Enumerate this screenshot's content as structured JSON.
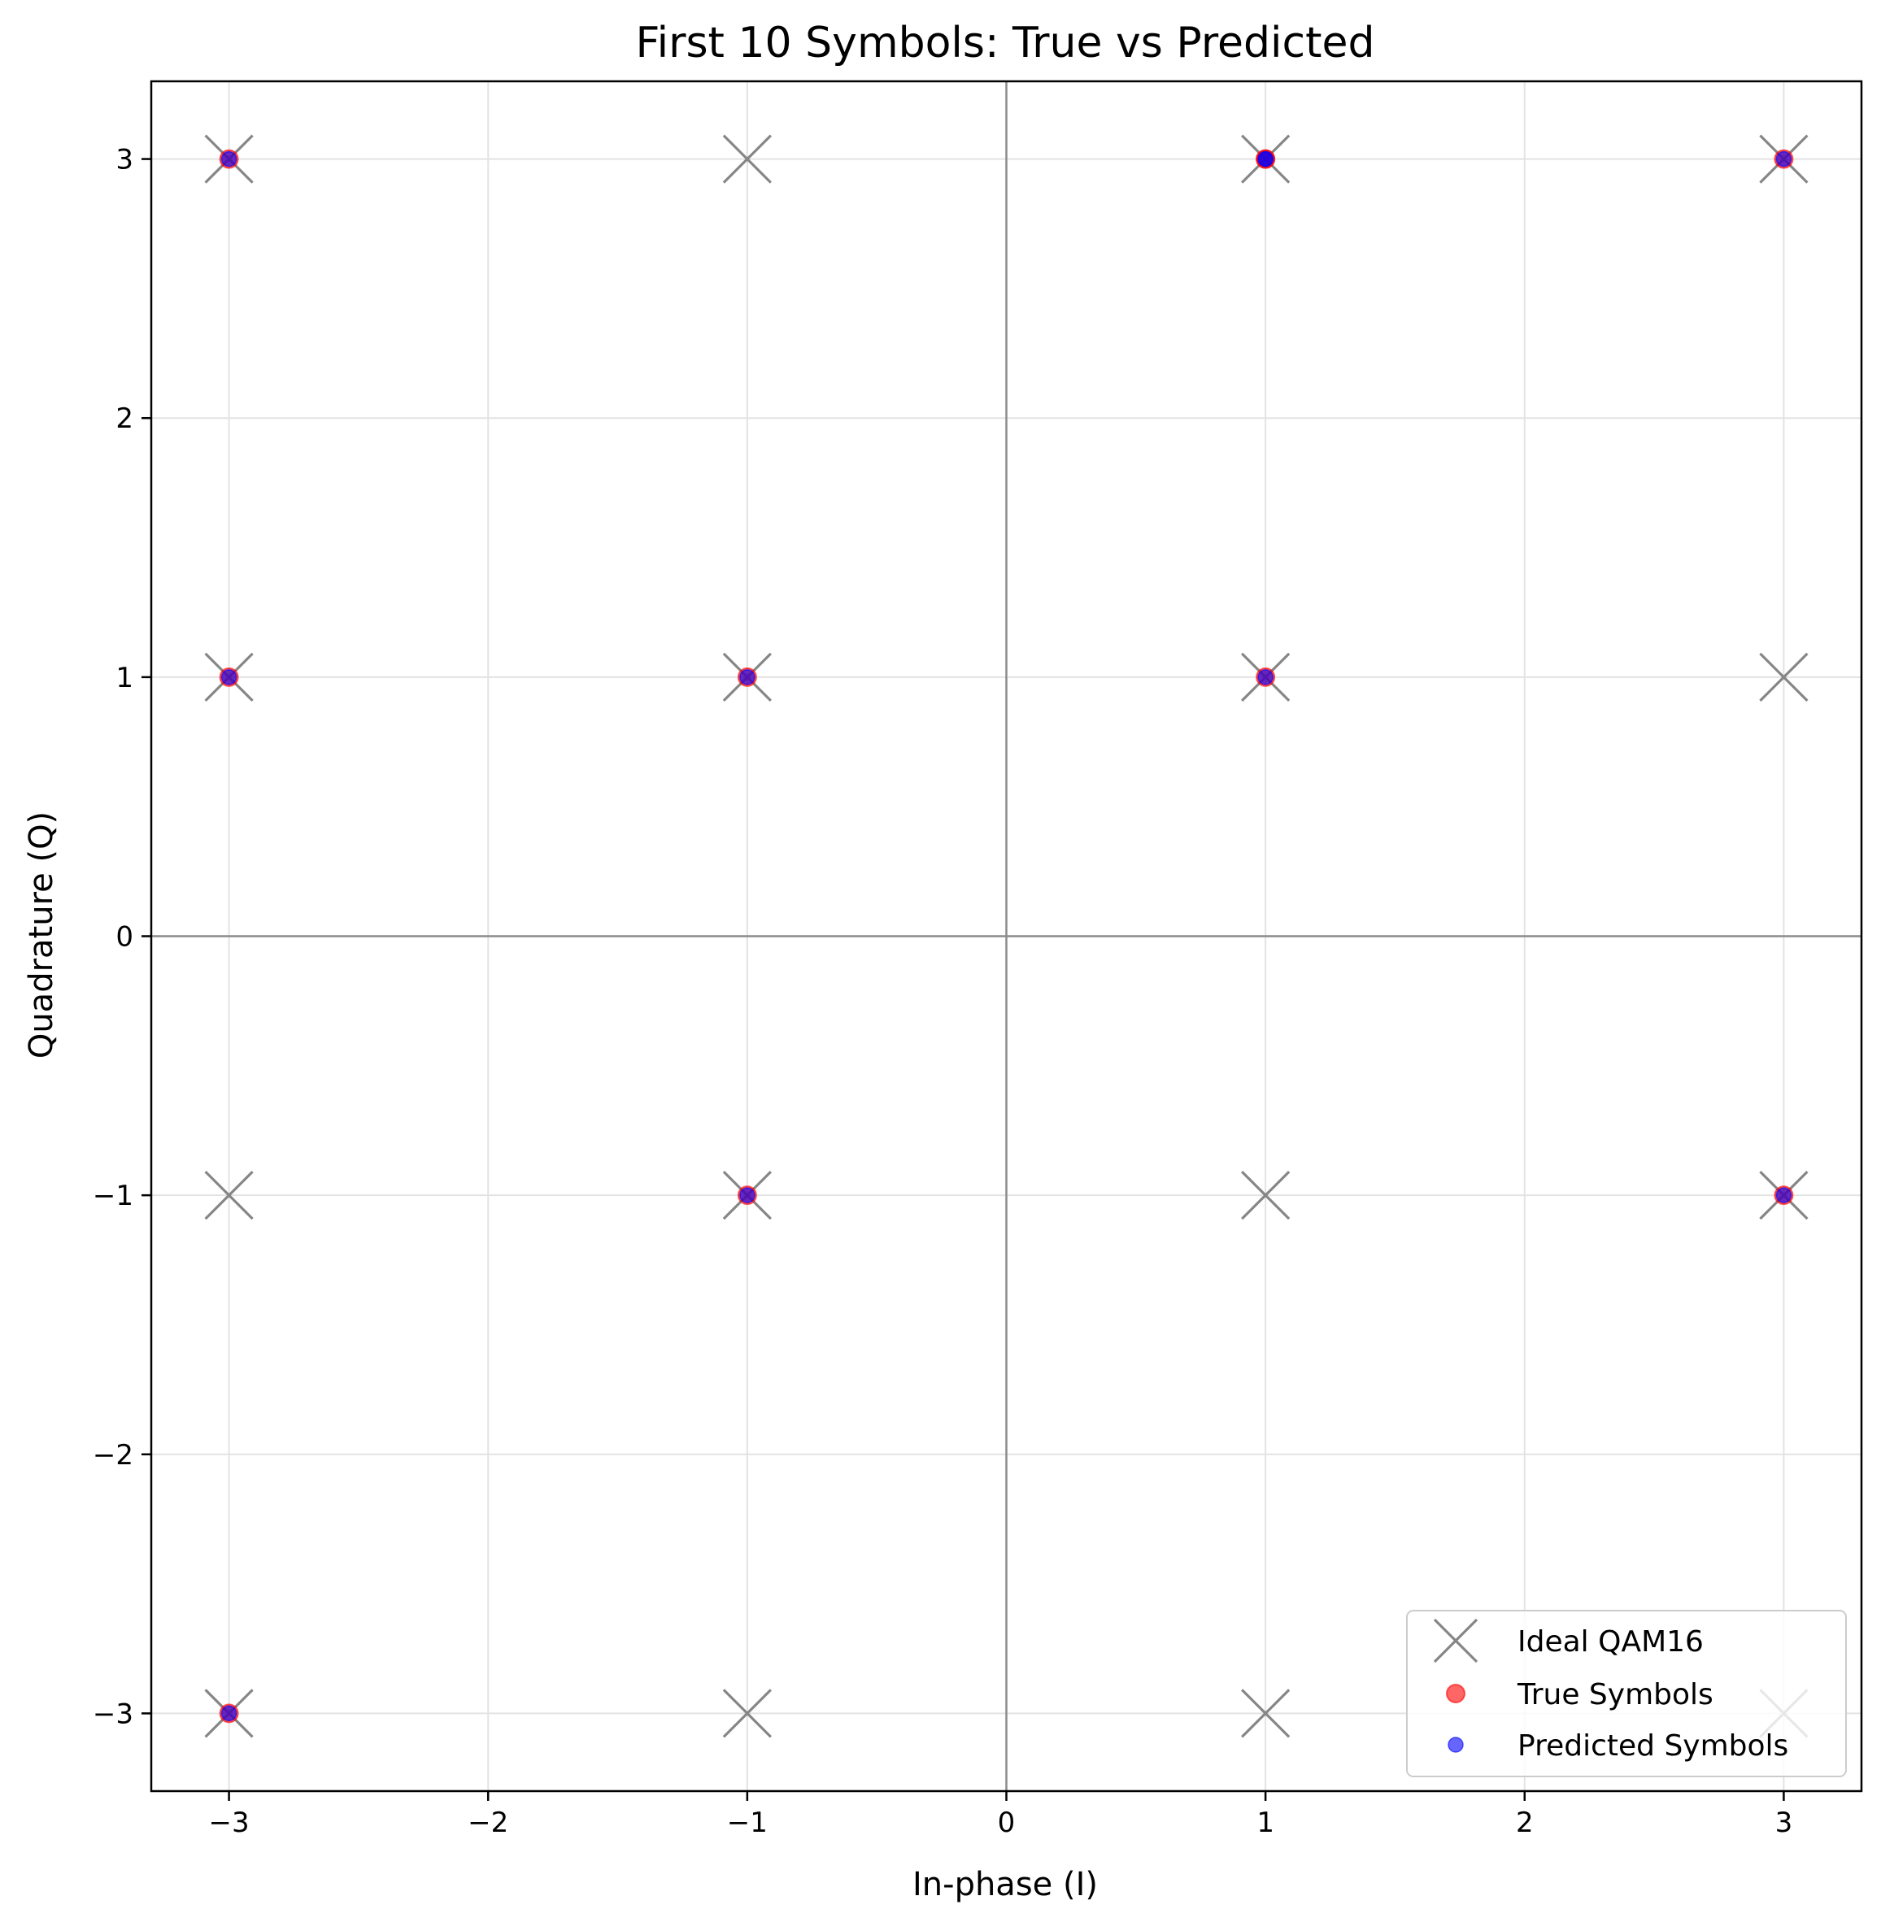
{
  "chart_data": {
    "type": "scatter",
    "title": "First 10 Symbols: True vs Predicted",
    "xlabel": "In-phase (I)",
    "ylabel": "Quadrature (Q)",
    "xlim": [
      -3.3,
      3.3
    ],
    "ylim": [
      -3.3,
      3.3
    ],
    "xticks": [
      -3,
      -2,
      -1,
      0,
      1,
      2,
      3
    ],
    "yticks": [
      -3,
      -2,
      -1,
      0,
      1,
      2,
      3
    ],
    "xtick_labels": [
      "−3",
      "−2",
      "−1",
      "0",
      "1",
      "2",
      "3"
    ],
    "ytick_labels": [
      "−3",
      "−2",
      "−1",
      "0",
      "1",
      "2",
      "3"
    ],
    "grid": true,
    "legend_position": "lower-right",
    "series": [
      {
        "name": "Ideal QAM16",
        "marker": "x",
        "color": "#808080",
        "points": [
          [
            -3,
            -3
          ],
          [
            -3,
            -1
          ],
          [
            -3,
            1
          ],
          [
            -3,
            3
          ],
          [
            -1,
            -3
          ],
          [
            -1,
            -1
          ],
          [
            -1,
            1
          ],
          [
            -1,
            3
          ],
          [
            1,
            -3
          ],
          [
            1,
            -1
          ],
          [
            1,
            1
          ],
          [
            1,
            3
          ],
          [
            3,
            -3
          ],
          [
            3,
            -1
          ],
          [
            3,
            1
          ],
          [
            3,
            3
          ]
        ]
      },
      {
        "name": "True Symbols",
        "marker": "o",
        "color": "#ff0000",
        "points": [
          [
            -3,
            3
          ],
          [
            1,
            3
          ],
          [
            3,
            3
          ],
          [
            -3,
            1
          ],
          [
            -1,
            1
          ],
          [
            1,
            1
          ],
          [
            -1,
            -1
          ],
          [
            3,
            -1
          ],
          [
            -3,
            -3
          ],
          [
            1,
            3
          ]
        ]
      },
      {
        "name": "Predicted Symbols",
        "marker": "o",
        "color": "#0000ff",
        "points": [
          [
            -3,
            3
          ],
          [
            1,
            3
          ],
          [
            3,
            3
          ],
          [
            -3,
            1
          ],
          [
            -1,
            1
          ],
          [
            1,
            1
          ],
          [
            -1,
            -1
          ],
          [
            3,
            -1
          ],
          [
            -3,
            -3
          ],
          [
            1,
            3
          ]
        ]
      }
    ]
  }
}
